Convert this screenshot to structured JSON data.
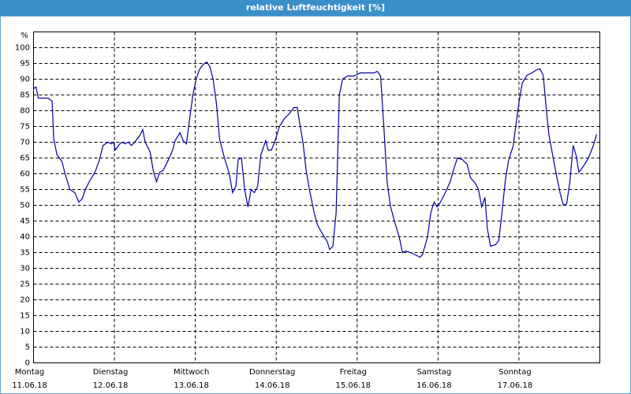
{
  "chart_data": {
    "type": "line",
    "title": "relative Luftfeuchtigkeit [%]",
    "ylabel": "%",
    "x": [
      0,
      0.03,
      0.06,
      0.13,
      0.18,
      0.23,
      0.25,
      0.29,
      0.35,
      0.39,
      0.45,
      0.51,
      0.56,
      0.6,
      0.64,
      0.7,
      0.76,
      0.81,
      0.86,
      0.92,
      0.96,
      0.99,
      1.01,
      1.05,
      1.09,
      1.13,
      1.17,
      1.21,
      1.25,
      1.31,
      1.35,
      1.38,
      1.44,
      1.48,
      1.52,
      1.56,
      1.6,
      1.66,
      1.72,
      1.75,
      1.81,
      1.85,
      1.89,
      1.93,
      1.97,
      2.01,
      2.05,
      2.09,
      2.14,
      2.18,
      2.22,
      2.26,
      2.3,
      2.36,
      2.42,
      2.46,
      2.5,
      2.53,
      2.57,
      2.61,
      2.65,
      2.69,
      2.73,
      2.77,
      2.81,
      2.87,
      2.9,
      2.94,
      2.98,
      3.04,
      3.1,
      3.16,
      3.22,
      3.26,
      3.29,
      3.33,
      3.37,
      3.41,
      3.47,
      3.51,
      3.57,
      3.63,
      3.66,
      3.7,
      3.74,
      3.78,
      3.82,
      3.88,
      3.96,
      4.04,
      4.13,
      4.21,
      4.25,
      4.29,
      4.33,
      4.37,
      4.41,
      4.46,
      4.52,
      4.56,
      4.6,
      4.66,
      4.72,
      4.78,
      4.81,
      4.87,
      4.91,
      4.95,
      4.99,
      5.03,
      5.09,
      5.15,
      5.2,
      5.24,
      5.3,
      5.36,
      5.4,
      5.46,
      5.5,
      5.54,
      5.58,
      5.61,
      5.65,
      5.71,
      5.75,
      5.79,
      5.83,
      5.87,
      5.93,
      5.96,
      6.0,
      6.04,
      6.1,
      6.16,
      6.22,
      6.26,
      6.3,
      6.34,
      6.37,
      6.43,
      6.47,
      6.51,
      6.55,
      6.59,
      6.63,
      6.67,
      6.71,
      6.74,
      6.8,
      6.86,
      6.92,
      6.96
    ],
    "series": [
      {
        "color": "#0000a0",
        "values": [
          87,
          87.5,
          84,
          84,
          84,
          83,
          71,
          66,
          64,
          60,
          55,
          54,
          51,
          52,
          55,
          58,
          60.5,
          64,
          69,
          70,
          69.5,
          70,
          67.5,
          69,
          70,
          69.5,
          70,
          69,
          70,
          72,
          74,
          70,
          67,
          61,
          57.5,
          60.5,
          61,
          64,
          67.5,
          70.5,
          73,
          70.5,
          69.5,
          77.5,
          85,
          90,
          93,
          94.5,
          95.5,
          94,
          90,
          82.5,
          71,
          65,
          60,
          54,
          56,
          64.5,
          65,
          55,
          49.5,
          55,
          54,
          56,
          66,
          70.5,
          67.5,
          67.5,
          70,
          75,
          77.5,
          79,
          81,
          81,
          76,
          70,
          61,
          55,
          47.5,
          43.75,
          41,
          38.5,
          36,
          37,
          47.5,
          85,
          90,
          91,
          91,
          92,
          92,
          92,
          92.5,
          91,
          75,
          57.5,
          50,
          45,
          40,
          35,
          35.5,
          35,
          34.25,
          33.5,
          34.5,
          40,
          47.5,
          51,
          49.5,
          51,
          54,
          57.5,
          62,
          65,
          64.5,
          63,
          58.75,
          57,
          55,
          49.5,
          52.5,
          42.5,
          37,
          37.5,
          38.75,
          47.5,
          57.5,
          64,
          69,
          75,
          82.5,
          88.75,
          91.25,
          92,
          93,
          93.25,
          91.25,
          80,
          72.5,
          64,
          58.75,
          53.75,
          50,
          50.5,
          57.5,
          69,
          65.5,
          60.5,
          62.5,
          65,
          69,
          72.5
        ]
      }
    ],
    "xlim": [
      0,
      7
    ],
    "ylim": [
      0,
      105
    ],
    "yticks": [
      0,
      5,
      10,
      15,
      20,
      25,
      30,
      35,
      40,
      45,
      50,
      55,
      60,
      65,
      70,
      75,
      80,
      85,
      90,
      95,
      100
    ],
    "xticks": [
      {
        "value": 0,
        "label": "Montag"
      },
      {
        "value": 1,
        "label": "Dienstag"
      },
      {
        "value": 2,
        "label": "Mittwoch"
      },
      {
        "value": 3,
        "label": "Donnerstag"
      },
      {
        "value": 4,
        "label": "Freitag"
      },
      {
        "value": 5,
        "label": "Samstag"
      },
      {
        "value": 6,
        "label": "Sonntag"
      }
    ],
    "xtick_dates": [
      "11.06.18",
      "12.06.18",
      "13.06.18",
      "14.06.18",
      "15.06.18",
      "16.06.18",
      "17.06.18"
    ],
    "grid": true
  }
}
